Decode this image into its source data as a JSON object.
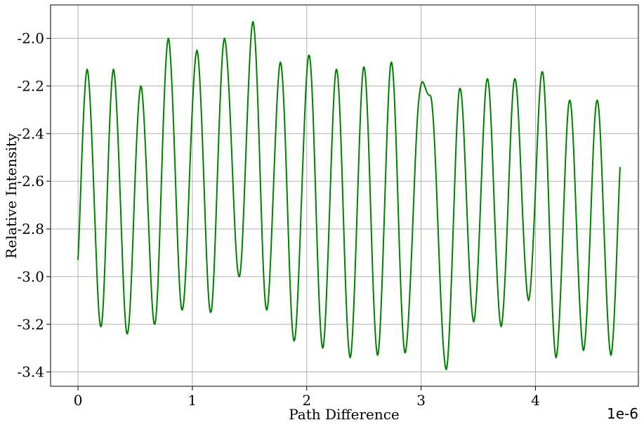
{
  "chart_data": {
    "type": "line",
    "title": "",
    "xlabel": "Path Difference",
    "ylabel": "Relative Intensity",
    "x_offset_label": "1e-6",
    "xlim": [
      -0.24,
      4.9
    ],
    "ylim": [
      -3.46,
      -1.86
    ],
    "x_ticks": [
      0,
      1,
      2,
      3,
      4
    ],
    "x_tick_labels": [
      "0",
      "1",
      "2",
      "3",
      "4"
    ],
    "y_ticks": [
      -3.4,
      -3.2,
      -3.0,
      -2.8,
      -2.6,
      -2.4,
      -2.2,
      -2.0
    ],
    "y_tick_labels": [
      "-3.4",
      "-3.2",
      "-3.0",
      "-2.8",
      "-2.6",
      "-2.4",
      "-2.2",
      "-2.0"
    ],
    "grid": true,
    "series": [
      {
        "color": "#008000",
        "x": [
          0.0,
          0.08,
          0.2,
          0.31,
          0.43,
          0.55,
          0.67,
          0.79,
          0.91,
          1.04,
          1.16,
          1.28,
          1.41,
          1.53,
          1.65,
          1.77,
          1.89,
          2.02,
          2.14,
          2.26,
          2.38,
          2.5,
          2.62,
          2.74,
          2.86,
          2.98,
          3.08,
          3.22,
          3.34,
          3.46,
          3.58,
          3.7,
          3.82,
          3.94,
          4.06,
          4.18,
          4.3,
          4.42,
          4.54,
          4.66,
          4.74
        ],
        "y": [
          -2.93,
          -2.13,
          -3.21,
          -2.13,
          -3.24,
          -2.2,
          -3.2,
          -2.0,
          -3.14,
          -2.05,
          -3.15,
          -2.0,
          -3.0,
          -1.93,
          -3.14,
          -2.1,
          -3.27,
          -2.07,
          -3.3,
          -2.13,
          -3.34,
          -2.12,
          -3.33,
          -2.1,
          -3.32,
          -2.26,
          -2.24,
          -3.39,
          -2.21,
          -3.19,
          -2.17,
          -3.21,
          -2.17,
          -3.1,
          -2.14,
          -3.34,
          -2.26,
          -3.31,
          -2.26,
          -3.33,
          -2.54
        ]
      }
    ]
  }
}
